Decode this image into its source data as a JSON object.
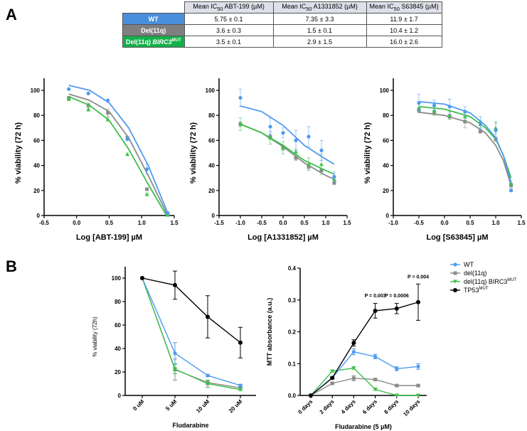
{
  "panels": {
    "a": "A",
    "b": "B"
  },
  "table": {
    "headers": [
      "Mean IC50 ABT-199 (µM)",
      "Mean IC50 A1331852 (µM)",
      "Mean IC50 S63845 (µM)"
    ],
    "header_parts": [
      [
        "Mean IC",
        "50",
        " ABT-199 (µM)"
      ],
      [
        "Mean IC",
        "50",
        " A1331852 (µM)"
      ],
      [
        "Mean IC",
        "50",
        " S63845 (µM)"
      ]
    ],
    "rows": [
      {
        "label": "WT",
        "color": "#4a8fdc",
        "values": [
          "5.75 ± 0.1",
          "7.35 ± 3.3",
          "11.9 ± 1.7"
        ]
      },
      {
        "label": "Del(11q)",
        "color": "#7f7f7f",
        "values": [
          "3.6 ± 0.3",
          "1.5 ± 0.1",
          "10.4 ± 1.2"
        ]
      },
      {
        "label": "Del(11q) BIRC3MUT",
        "label_main": "Del(11q) ",
        "label_gene": "BIRC3",
        "label_sup": "MUT",
        "color": "#14b04a",
        "values": [
          "3.5 ± 0.1",
          "2.9 ± 1.5",
          "16.0 ± 2.6"
        ]
      }
    ]
  },
  "colors": {
    "WT": "#4f9bf0",
    "del": "#8c8c8c",
    "birc3": "#3cc04a",
    "tp53": "#000000"
  },
  "chart_data": [
    {
      "type": "scatter",
      "ylabel": "% viability (72 h)",
      "xlabel": "Log [ABT-199] µM",
      "xlim": [
        -0.5,
        1.5
      ],
      "ylim": [
        0,
        100
      ],
      "xticks": [
        "-0.5",
        "0.0",
        "0.5",
        "1.0",
        "1.5"
      ],
      "yticks": [
        "0",
        "20",
        "40",
        "60",
        "80",
        "100"
      ],
      "x": [
        -0.12,
        0.18,
        0.48,
        0.78,
        1.08,
        1.4
      ],
      "series": [
        {
          "name": "WT",
          "values": [
            101,
            97.5,
            92,
            61,
            37,
            2
          ],
          "errors": [
            0,
            0,
            0,
            1,
            4,
            0
          ],
          "fit": [
            [
              -0.12,
              104
            ],
            [
              0.2,
              100
            ],
            [
              0.5,
              90
            ],
            [
              0.8,
              70
            ],
            [
              1.1,
              40
            ],
            [
              1.4,
              2
            ]
          ]
        },
        {
          "name": "Del(11q)",
          "values": [
            94,
            88,
            82,
            62,
            21,
            1
          ],
          "errors": [
            1,
            2,
            3,
            1,
            1,
            0
          ],
          "fit": [
            [
              -0.12,
              97
            ],
            [
              0.2,
              92
            ],
            [
              0.5,
              83
            ],
            [
              0.8,
              62
            ],
            [
              1.1,
              32
            ],
            [
              1.4,
              0
            ]
          ]
        },
        {
          "name": "Del(11q) BIRC3MUT",
          "values": [
            93,
            85,
            77,
            49,
            17,
            0.5
          ],
          "errors": [
            1,
            2,
            2,
            1,
            1,
            0
          ],
          "fit": [
            [
              -0.12,
              95
            ],
            [
              0.2,
              88
            ],
            [
              0.5,
              76
            ],
            [
              0.8,
              53
            ],
            [
              1.1,
              25
            ],
            [
              1.38,
              0
            ]
          ]
        }
      ]
    },
    {
      "type": "scatter",
      "ylabel": "% viability (72 h)",
      "xlabel": "Log [A1331852] µM",
      "xlim": [
        -1.5,
        1.5
      ],
      "ylim": [
        0,
        100
      ],
      "xticks": [
        "-1.5",
        "-1.0",
        "-0.5",
        "0.0",
        "0.5",
        "1.0",
        "1.5"
      ],
      "yticks": [
        "0",
        "20",
        "40",
        "60",
        "80",
        "100"
      ],
      "x": [
        -1,
        -0.3,
        0,
        0.3,
        0.6,
        0.9,
        1.2
      ],
      "series": [
        {
          "name": "WT",
          "values": [
            94,
            71,
            66,
            60,
            63,
            52,
            31
          ],
          "errors": [
            7,
            7,
            4,
            8,
            8,
            8,
            4
          ],
          "fit": [
            [
              -1,
              87.5
            ],
            [
              -0.5,
              83
            ],
            [
              0,
              72
            ],
            [
              0.5,
              56
            ],
            [
              1,
              45
            ],
            [
              1.2,
              41
            ]
          ]
        },
        {
          "name": "Del(11q)",
          "values": [
            73,
            63,
            54,
            46,
            39,
            36,
            26
          ],
          "errors": [
            2,
            2,
            2,
            2,
            2,
            1,
            1
          ],
          "fit": [
            [
              -1,
              73
            ],
            [
              -0.5,
              66
            ],
            [
              0,
              55
            ],
            [
              0.5,
              42
            ],
            [
              1,
              32
            ],
            [
              1.2,
              29
            ]
          ]
        },
        {
          "name": "Del(11q) BIRC3MUT",
          "values": [
            73,
            62,
            54,
            51,
            41,
            41,
            29
          ],
          "errors": [
            5,
            5,
            5,
            2,
            5,
            8,
            2
          ],
          "fit": [
            [
              -1,
              73
            ],
            [
              -0.5,
              66
            ],
            [
              0,
              56
            ],
            [
              0.5,
              44
            ],
            [
              1,
              36
            ],
            [
              1.2,
              33
            ]
          ]
        }
      ]
    },
    {
      "type": "scatter",
      "ylabel": "% viability (72 h)",
      "xlabel": "Log [S63845] µM",
      "xlim": [
        -1,
        1.5
      ],
      "ylim": [
        0,
        100
      ],
      "xticks": [
        "-1.0",
        "-0.5",
        "0.0",
        "0.5",
        "1.0",
        "1.5"
      ],
      "yticks": [
        "0",
        "20",
        "40",
        "60",
        "80",
        "100"
      ],
      "x": [
        -0.5,
        -0.2,
        0.1,
        0.4,
        0.7,
        1.0,
        1.3
      ],
      "series": [
        {
          "name": "WT",
          "values": [
            90,
            88,
            87,
            83,
            74,
            68,
            20
          ],
          "errors": [
            7,
            4,
            6,
            4,
            5,
            6,
            1
          ],
          "fit": [
            [
              -0.5,
              91
            ],
            [
              0,
              89
            ],
            [
              0.5,
              82
            ],
            [
              0.8,
              72
            ],
            [
              1,
              62
            ],
            [
              1.15,
              48
            ],
            [
              1.3,
              26
            ]
          ]
        },
        {
          "name": "Del(11q)",
          "values": [
            84,
            82,
            79,
            75,
            67,
            61,
            24
          ],
          "errors": [
            2,
            2,
            2,
            5,
            1,
            2,
            2
          ],
          "fit": [
            [
              -0.5,
              82.5
            ],
            [
              0,
              80
            ],
            [
              0.5,
              74
            ],
            [
              0.8,
              66
            ],
            [
              1,
              56
            ],
            [
              1.15,
              44
            ],
            [
              1.3,
              24
            ]
          ]
        },
        {
          "name": "Del(11q) BIRC3MUT",
          "values": [
            86,
            84,
            80,
            79,
            73,
            70,
            26
          ],
          "errors": [
            3,
            3,
            3,
            3,
            3,
            5,
            2
          ],
          "fit": [
            [
              -0.5,
              87
            ],
            [
              0,
              85
            ],
            [
              0.5,
              79
            ],
            [
              0.8,
              70
            ],
            [
              1,
              61
            ],
            [
              1.15,
              48
            ],
            [
              1.3,
              30
            ]
          ]
        }
      ]
    },
    {
      "type": "line",
      "ylabel": "% viability (72h)",
      "xlabel": "Fludarabine",
      "ylim": [
        0,
        100
      ],
      "categories": [
        "0 uM",
        "5 uM",
        "10 uM",
        "20 uM"
      ],
      "yticks": [
        "0",
        "20",
        "40",
        "60",
        "80",
        "100"
      ],
      "series": [
        {
          "name": "WT",
          "values": [
            100,
            36,
            17,
            8.5
          ],
          "errors": [
            0,
            9,
            1,
            1
          ]
        },
        {
          "name": "del(11q)",
          "values": [
            100,
            22,
            11,
            6.5
          ],
          "errors": [
            0,
            9,
            2,
            1
          ]
        },
        {
          "name": "del(11q) BIRC3MUT",
          "values": [
            100,
            22.5,
            10,
            5
          ],
          "errors": [
            0,
            4,
            3,
            1
          ]
        },
        {
          "name": "TP53MUT",
          "values": [
            100,
            94,
            67,
            45
          ],
          "errors": [
            0,
            12,
            18,
            13
          ]
        }
      ]
    },
    {
      "type": "line",
      "ylabel": "MTT absorbance (a.u.)",
      "xlabel": "Fludarabine (5 µM)",
      "ylim": [
        0,
        0.4
      ],
      "categories": [
        "0 days",
        "2 days",
        "4 days",
        "6 days",
        "8 days",
        "10 days"
      ],
      "yticks": [
        "0.0",
        "0.1",
        "0.2",
        "0.3",
        "0.4"
      ],
      "series": [
        {
          "name": "WT",
          "values": [
            0,
            0.055,
            0.137,
            0.122,
            0.084,
            0.091
          ],
          "errors": [
            0,
            0.004,
            0.009,
            0.007,
            0.006,
            0.009
          ]
        },
        {
          "name": "del(11q)",
          "values": [
            0,
            0.038,
            0.054,
            0.05,
            0.031,
            0.031
          ],
          "errors": [
            0,
            0.002,
            0.008,
            0.003,
            0.002,
            0.002
          ]
        },
        {
          "name": "del(11q) BIRC3MUT",
          "values": [
            0,
            0.076,
            0.086,
            0.019,
            0,
            0
          ],
          "errors": [
            0,
            0.003,
            0.004,
            0.003,
            0,
            0
          ]
        },
        {
          "name": "TP53MUT",
          "values": [
            0,
            0.055,
            0.165,
            0.266,
            0.273,
            0.293
          ],
          "errors": [
            0,
            0.003,
            0.01,
            0.023,
            0.016,
            0.057
          ]
        }
      ],
      "annotations": [
        {
          "category": "6 days",
          "text": "P = 0.003"
        },
        {
          "category": "8 days",
          "text": "P = 0.0006"
        },
        {
          "category": "10 days",
          "text": "P = 0.004"
        }
      ],
      "legend": {
        "placement": "right",
        "entries": [
          {
            "label": "WT",
            "sup": ""
          },
          {
            "label": "del(11q)",
            "sup": ""
          },
          {
            "label": "del(11q) BIRC3",
            "sup": "MUT"
          },
          {
            "label": "TP53",
            "sup": "MUT"
          }
        ]
      }
    }
  ]
}
